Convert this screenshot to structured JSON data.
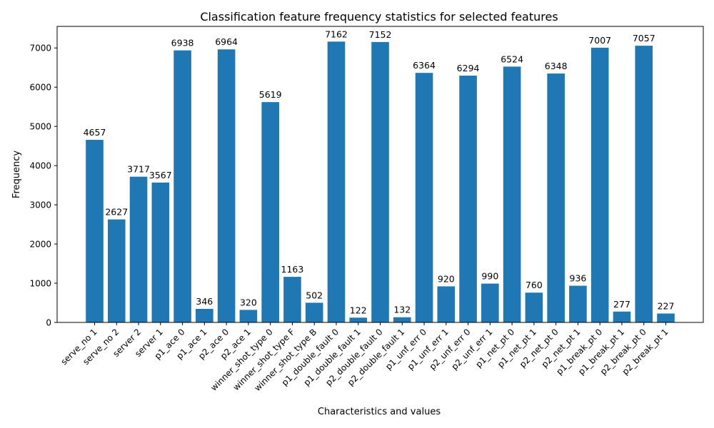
{
  "chart_data": {
    "type": "bar",
    "title": "Classification feature frequency statistics for selected features",
    "xlabel": "Characteristics and values",
    "ylabel": "Frequency",
    "ylim": [
      0,
      7550
    ],
    "yticks": [
      0,
      1000,
      2000,
      3000,
      4000,
      5000,
      6000,
      7000
    ],
    "grid": false,
    "bar_color": "#1f77b4",
    "categories": [
      "serve_no 1",
      "serve_no 2",
      "server 2",
      "server 1",
      "p1_ace 0",
      "p1_ace 1",
      "p2_ace 0",
      "p2_ace 1",
      "winner_shot_type 0",
      "winner_shot_type F",
      "winner_shot_type B",
      "p1_double_fault 0",
      "p1_double_fault 1",
      "p2_double_fault 0",
      "p2_double_fault 1",
      "p1_unf_err 0",
      "p1_unf_err 1",
      "p2_unf_err 0",
      "p2_unf_err 1",
      "p1_net_pt 0",
      "p1_net_pt 1",
      "p2_net_pt 0",
      "p2_net_pt 1",
      "p1_break_pt 0",
      "p1_break_pt 1",
      "p2_break_pt 0",
      "p2_break_pt 1"
    ],
    "values": [
      4657,
      2627,
      3717,
      3567,
      6938,
      346,
      6964,
      320,
      5619,
      1163,
      502,
      7162,
      122,
      7152,
      132,
      6364,
      920,
      6294,
      990,
      6524,
      760,
      6348,
      936,
      7007,
      277,
      7057,
      227
    ]
  }
}
